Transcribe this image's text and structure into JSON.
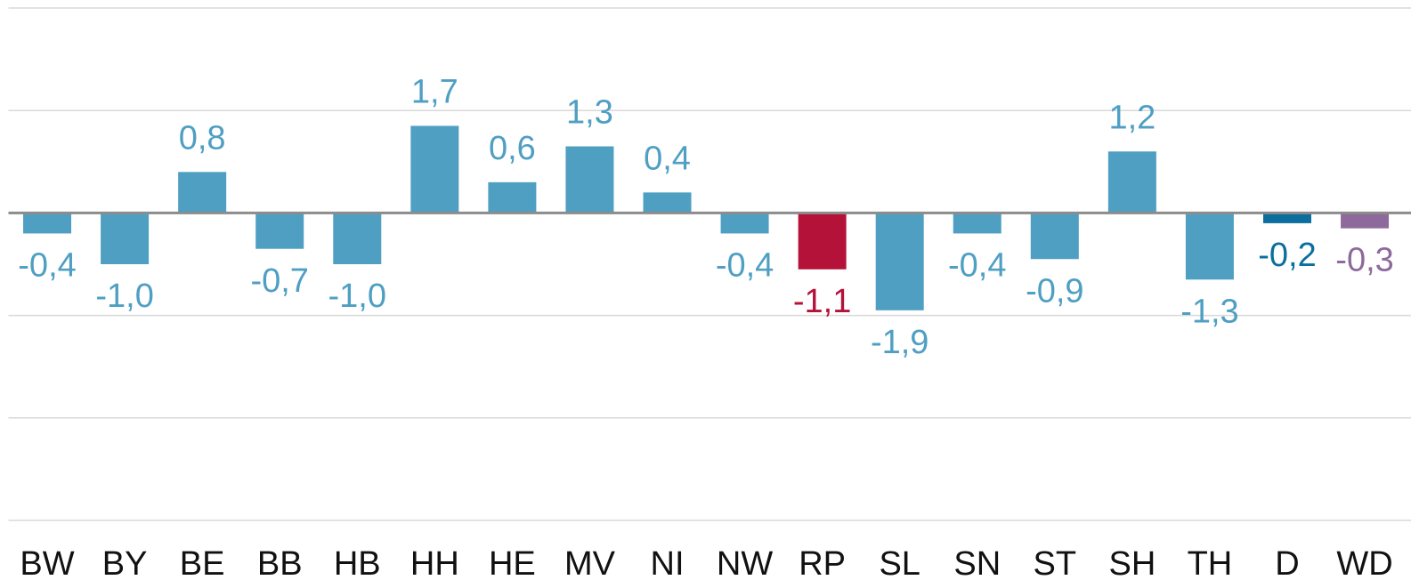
{
  "chart_data": {
    "type": "bar",
    "categories": [
      "BW",
      "BY",
      "BE",
      "BB",
      "HB",
      "HH",
      "HE",
      "MV",
      "NI",
      "NW",
      "RP",
      "SL",
      "SN",
      "ST",
      "SH",
      "TH",
      "D",
      "WD"
    ],
    "values": [
      -0.4,
      -1.0,
      0.8,
      -0.7,
      -1.0,
      1.7,
      0.6,
      1.3,
      0.4,
      -0.4,
      -1.1,
      -1.9,
      -0.4,
      -0.9,
      1.2,
      -1.3,
      -0.2,
      -0.3
    ],
    "value_labels": [
      "-0,4",
      "-1,0",
      "0,8",
      "-0,7",
      "-1,0",
      "1,7",
      "0,6",
      "1,3",
      "0,4",
      "-0,4",
      "-1,1",
      "-1,9",
      "-0,4",
      "-0,9",
      "1,2",
      "-1,3",
      "-0,2",
      "-0,3"
    ],
    "colors": [
      "#4f9fc3",
      "#4f9fc3",
      "#4f9fc3",
      "#4f9fc3",
      "#4f9fc3",
      "#4f9fc3",
      "#4f9fc3",
      "#4f9fc3",
      "#4f9fc3",
      "#4f9fc3",
      "#b5123a",
      "#4f9fc3",
      "#4f9fc3",
      "#4f9fc3",
      "#4f9fc3",
      "#4f9fc3",
      "#0b6e9c",
      "#8d6a9b"
    ],
    "ylim": [
      -6,
      4
    ],
    "yticks": [
      -6,
      -4,
      -2,
      0,
      2,
      4
    ],
    "grid": true
  }
}
